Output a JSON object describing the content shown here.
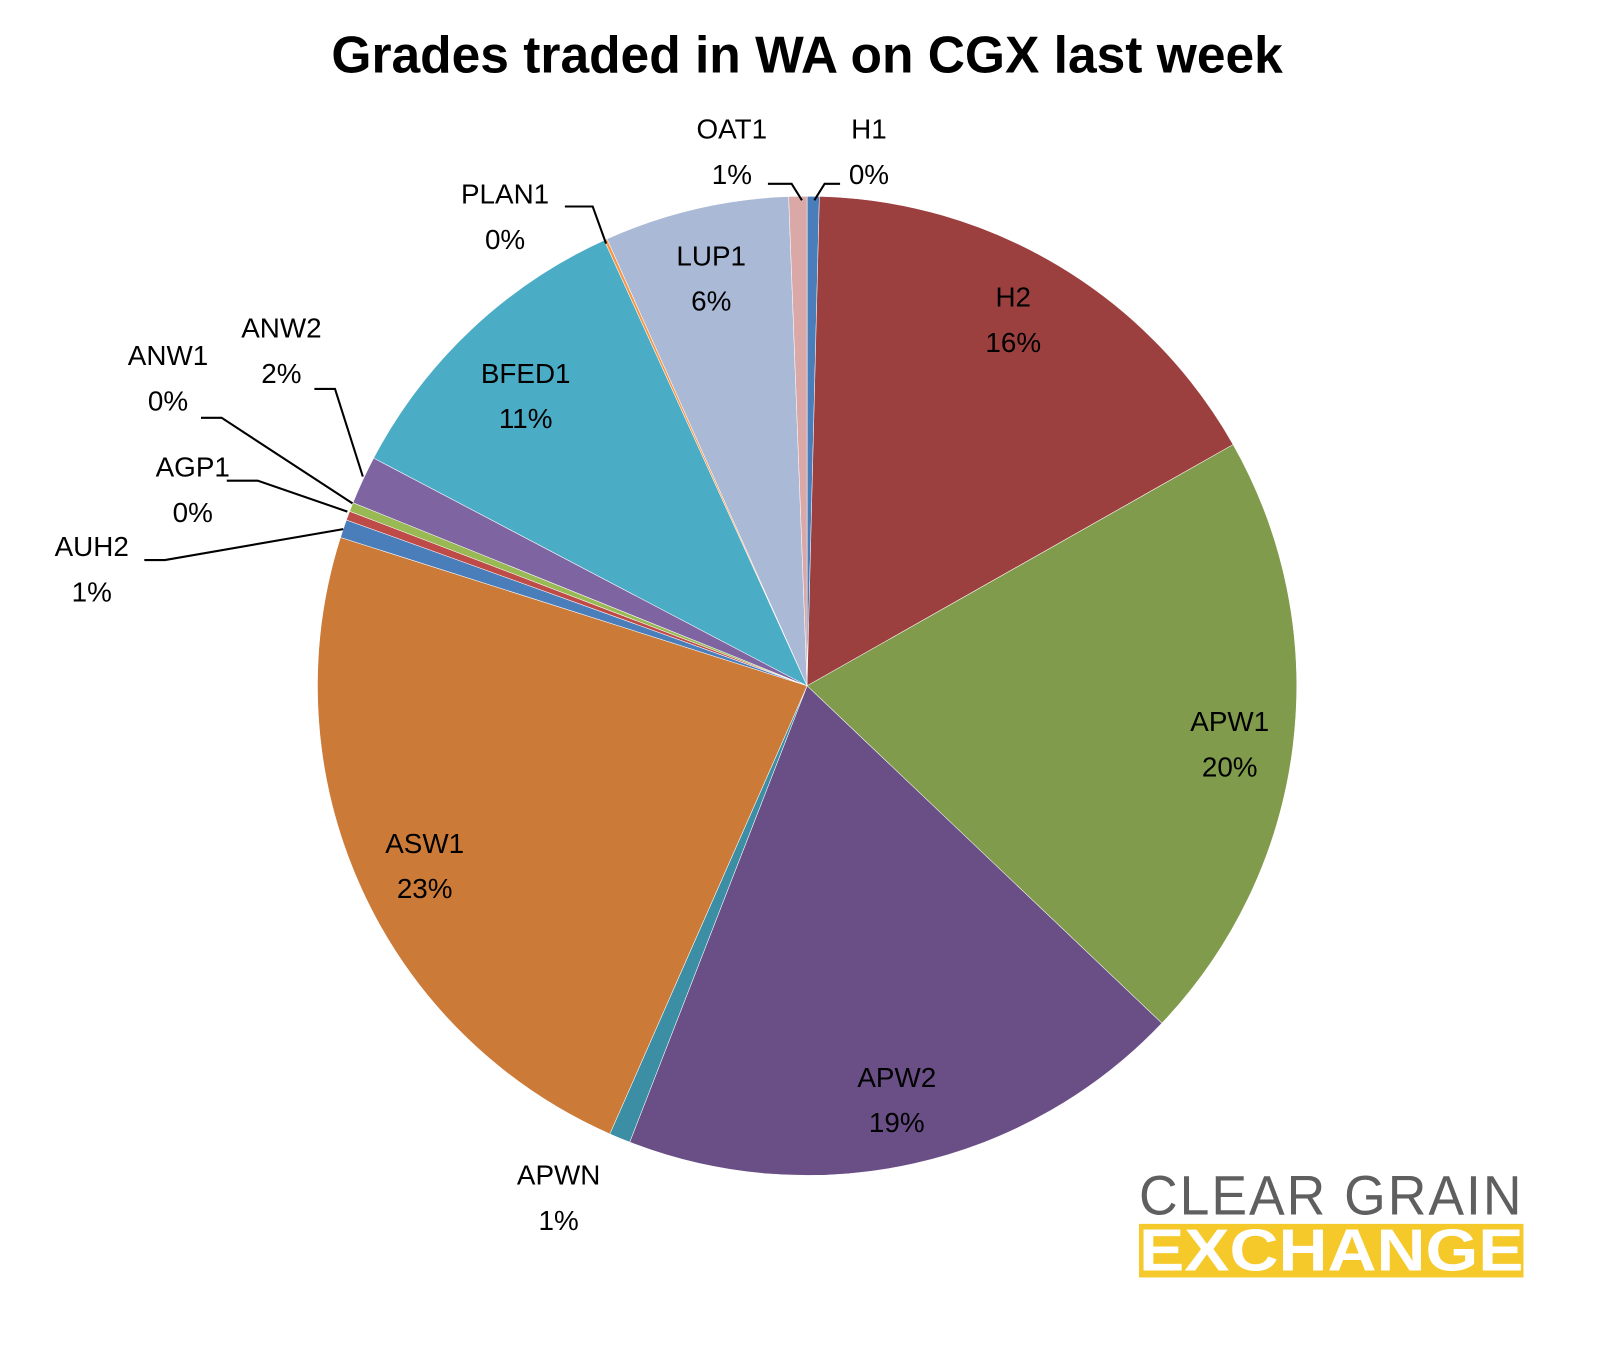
{
  "chart_data": {
    "type": "pie",
    "title": "Grades traded in WA on CGX last week",
    "labels": [
      "H1",
      "H2",
      "APW1",
      "APW2",
      "APWN",
      "ASW1",
      "AUH2",
      "AGP1",
      "ANW1",
      "ANW2",
      "BFED1",
      "PLAN1",
      "LUP1",
      "OAT1"
    ],
    "values": [
      0.4,
      16.4,
      20.3,
      18.8,
      0.7,
      23.3,
      0.6,
      0.3,
      0.3,
      1.6,
      10.5,
      0.1,
      6.1,
      0.6
    ],
    "value_labels": [
      "0%",
      "16%",
      "20%",
      "19%",
      "1%",
      "23%",
      "1%",
      "0%",
      "0%",
      "2%",
      "11%",
      "0%",
      "6%",
      "1%"
    ],
    "colors": [
      "#4a7ebb",
      "#9c3f3f",
      "#809b4b",
      "#694f86",
      "#3b8ea3",
      "#cc7a38",
      "#4a7ebb",
      "#be4b48",
      "#98b954",
      "#7f64a2",
      "#4bacc6",
      "#f79646",
      "#aab9d6",
      "#dba8a8"
    ]
  },
  "logo": {
    "line1": "CLEAR GRAIN",
    "line2": "EXCHANGE"
  }
}
